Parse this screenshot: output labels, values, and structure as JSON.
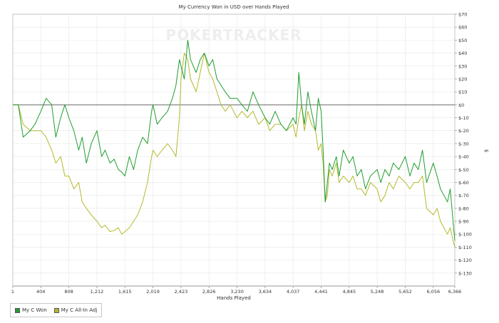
{
  "chart_data": {
    "type": "line",
    "title": "My Currency Won in USD over Hands Played",
    "xlabel": "Hands Played",
    "ylabel": "$",
    "watermark": "POKERTRACKER",
    "xlim": [
      1,
      6366
    ],
    "ylim": [
      -140,
      70
    ],
    "grid": true,
    "legend_position": "bottom-left",
    "x_ticks": [
      1,
      404,
      808,
      1212,
      1615,
      2019,
      2423,
      2826,
      3230,
      3634,
      4037,
      4441,
      4845,
      5248,
      5652,
      6056,
      6366
    ],
    "x_tick_labels": [
      "1",
      "404",
      "808",
      "1,212",
      "1,615",
      "2,019",
      "2,423",
      "2,826",
      "3,230",
      "3,634",
      "4,037",
      "4,441",
      "4,845",
      "5,248",
      "5,652",
      "6,056",
      "6,366"
    ],
    "y_ticks": [
      70,
      60,
      50,
      40,
      30,
      20,
      10,
      0,
      -10,
      -20,
      -30,
      -40,
      -50,
      -60,
      -70,
      -80,
      -90,
      -100,
      -110,
      -120,
      -130
    ],
    "y_tick_labels": [
      "$70",
      "$60",
      "$50",
      "$40",
      "$30",
      "$20",
      "$10",
      "$0",
      "$-10",
      "$-20",
      "$-30",
      "$-40",
      "$-50",
      "$-60",
      "$-70",
      "$-80",
      "$-90",
      "$-100",
      "$-110",
      "$-120",
      "$-130"
    ],
    "series": [
      {
        "name": "My C Won",
        "color": "#1f9e2f",
        "x": [
          1,
          80,
          150,
          250,
          320,
          404,
          480,
          560,
          620,
          690,
          750,
          808,
          880,
          950,
          1000,
          1060,
          1130,
          1212,
          1280,
          1330,
          1400,
          1460,
          1520,
          1570,
          1615,
          1680,
          1740,
          1800,
          1870,
          1940,
          2000,
          2019,
          2080,
          2150,
          2230,
          2300,
          2350,
          2400,
          2423,
          2470,
          2520,
          2560,
          2600,
          2640,
          2700,
          2760,
          2826,
          2880,
          2940,
          3000,
          3060,
          3130,
          3230,
          3300,
          3380,
          3460,
          3540,
          3634,
          3700,
          3780,
          3860,
          3940,
          4037,
          4080,
          4120,
          4160,
          4200,
          4250,
          4300,
          4360,
          4400,
          4441,
          4470,
          4500,
          4530,
          4560,
          4600,
          4660,
          4700,
          4760,
          4845,
          4900,
          4960,
          5020,
          5080,
          5150,
          5248,
          5300,
          5360,
          5420,
          5480,
          5560,
          5652,
          5720,
          5780,
          5840,
          5900,
          5960,
          6056,
          6110,
          6160,
          6210,
          6260,
          6300,
          6340,
          6366
        ],
        "values": [
          0,
          0,
          -25,
          -20,
          -15,
          -5,
          5,
          0,
          -25,
          -10,
          0,
          -10,
          -20,
          -35,
          -25,
          -45,
          -30,
          -20,
          -40,
          -35,
          -45,
          -42,
          -50,
          -52,
          -55,
          -40,
          -50,
          -35,
          -25,
          -30,
          -5,
          0,
          -15,
          -10,
          -5,
          5,
          15,
          35,
          30,
          20,
          50,
          35,
          30,
          25,
          35,
          40,
          30,
          35,
          20,
          15,
          10,
          5,
          5,
          0,
          -5,
          10,
          0,
          -10,
          -15,
          -5,
          -15,
          -20,
          -10,
          -15,
          25,
          0,
          -15,
          10,
          -5,
          -20,
          5,
          -5,
          -35,
          -75,
          -60,
          -45,
          -50,
          -40,
          -55,
          -35,
          -45,
          -40,
          -55,
          -50,
          -65,
          -55,
          -50,
          -60,
          -50,
          -55,
          -45,
          -50,
          -40,
          -55,
          -45,
          -50,
          -35,
          -60,
          -45,
          -55,
          -65,
          -70,
          -75,
          -65,
          -90,
          -105
        ]
      },
      {
        "name": "My C All-In Adj",
        "color": "#b5b82c",
        "x": [
          1,
          80,
          150,
          250,
          320,
          404,
          480,
          560,
          620,
          690,
          750,
          808,
          880,
          950,
          1000,
          1060,
          1130,
          1212,
          1280,
          1330,
          1400,
          1460,
          1520,
          1570,
          1615,
          1680,
          1740,
          1800,
          1870,
          1940,
          2000,
          2019,
          2080,
          2150,
          2230,
          2300,
          2350,
          2400,
          2423,
          2470,
          2520,
          2560,
          2600,
          2640,
          2700,
          2760,
          2826,
          2880,
          2940,
          3000,
          3060,
          3130,
          3230,
          3300,
          3380,
          3460,
          3540,
          3634,
          3700,
          3780,
          3860,
          3940,
          4037,
          4080,
          4120,
          4160,
          4200,
          4250,
          4300,
          4360,
          4400,
          4441,
          4470,
          4500,
          4530,
          4560,
          4600,
          4660,
          4700,
          4760,
          4845,
          4900,
          4960,
          5020,
          5080,
          5150,
          5248,
          5300,
          5360,
          5420,
          5480,
          5560,
          5652,
          5720,
          5780,
          5840,
          5900,
          5960,
          6056,
          6110,
          6160,
          6210,
          6260,
          6300,
          6340,
          6366
        ],
        "values": [
          0,
          0,
          -15,
          -20,
          -20,
          -20,
          -25,
          -35,
          -45,
          -40,
          -55,
          -55,
          -65,
          -60,
          -75,
          -80,
          -85,
          -90,
          -95,
          -93,
          -98,
          -97,
          -95,
          -100,
          -98,
          -95,
          -90,
          -85,
          -75,
          -60,
          -40,
          -35,
          -40,
          -35,
          -30,
          -35,
          -40,
          -10,
          20,
          40,
          35,
          20,
          15,
          10,
          25,
          40,
          25,
          20,
          10,
          0,
          -5,
          0,
          -10,
          -5,
          -10,
          -5,
          -15,
          -10,
          -20,
          -15,
          -15,
          -20,
          -15,
          -25,
          -10,
          0,
          -20,
          -5,
          -15,
          -20,
          -35,
          -30,
          -45,
          -75,
          -70,
          -50,
          -55,
          -45,
          -60,
          -55,
          -60,
          -55,
          -65,
          -65,
          -70,
          -60,
          -65,
          -75,
          -70,
          -60,
          -65,
          -55,
          -60,
          -65,
          -60,
          -60,
          -55,
          -80,
          -85,
          -80,
          -90,
          -95,
          -100,
          -95,
          -105,
          -110
        ]
      }
    ]
  }
}
